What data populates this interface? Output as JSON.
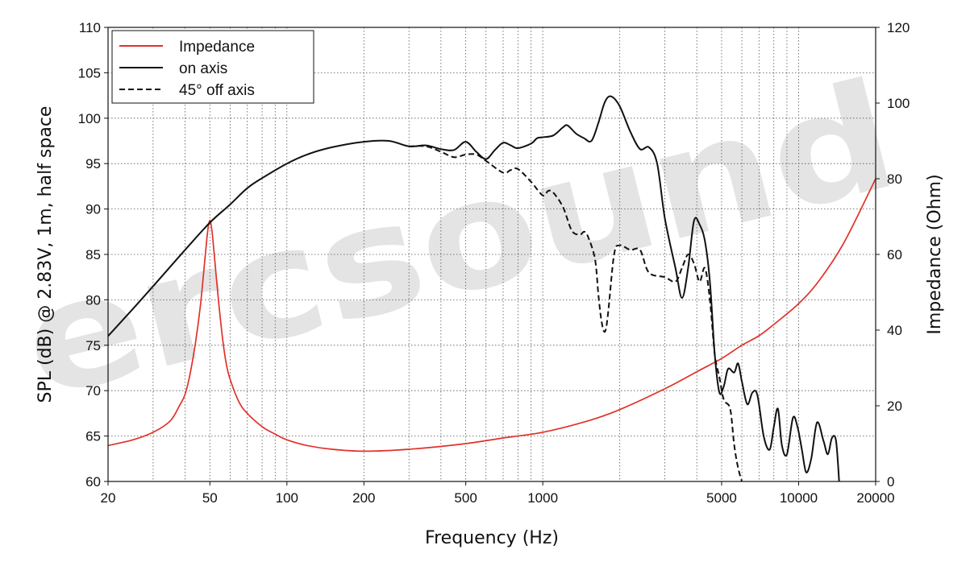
{
  "chart_data": {
    "type": "line",
    "xlabel": "Frequency (Hz)",
    "ylabel_left": "SPL (dB) @ 2.83V, 1m, half space",
    "ylabel_right": "Impedance (Ohm)",
    "x_scale": "log",
    "xlim": [
      20,
      20000
    ],
    "ylim_left": [
      60,
      110
    ],
    "ylim_right": [
      0,
      120
    ],
    "x_ticks": [
      20,
      50,
      100,
      200,
      500,
      1000,
      5000,
      10000,
      20000
    ],
    "x_tick_labels": [
      "20",
      "50",
      "100",
      "200",
      "500",
      "1000",
      "5000",
      "10000",
      "20000"
    ],
    "y_left_ticks": [
      60,
      65,
      70,
      75,
      80,
      85,
      90,
      95,
      100,
      105,
      110
    ],
    "y_right_ticks": [
      0,
      20,
      40,
      60,
      80,
      100,
      120
    ],
    "grid": true,
    "legend_position": "top-left",
    "watermark": "ercsound",
    "series": [
      {
        "name": "Impedance",
        "axis": "right",
        "color": "#e0322a",
        "style": "solid",
        "points": [
          [
            20,
            9.5
          ],
          [
            25,
            11
          ],
          [
            30,
            13
          ],
          [
            35,
            16
          ],
          [
            38,
            20
          ],
          [
            40,
            23
          ],
          [
            42,
            29
          ],
          [
            44,
            37
          ],
          [
            46,
            47
          ],
          [
            48,
            60
          ],
          [
            49,
            66
          ],
          [
            50,
            69
          ],
          [
            51,
            66
          ],
          [
            52,
            60
          ],
          [
            54,
            48
          ],
          [
            56,
            38
          ],
          [
            58,
            31
          ],
          [
            60,
            27
          ],
          [
            65,
            21
          ],
          [
            70,
            18
          ],
          [
            80,
            14.5
          ],
          [
            90,
            12.5
          ],
          [
            100,
            11
          ],
          [
            120,
            9.5
          ],
          [
            150,
            8.5
          ],
          [
            200,
            8
          ],
          [
            300,
            8.5
          ],
          [
            500,
            10
          ],
          [
            700,
            11.5
          ],
          [
            1000,
            13
          ],
          [
            1500,
            16
          ],
          [
            2000,
            19
          ],
          [
            3000,
            24.5
          ],
          [
            4000,
            29
          ],
          [
            5000,
            32.5
          ],
          [
            6000,
            36
          ],
          [
            7000,
            38.5
          ],
          [
            8000,
            41.5
          ],
          [
            10000,
            47
          ],
          [
            12000,
            53
          ],
          [
            15000,
            63
          ],
          [
            20000,
            80
          ]
        ]
      },
      {
        "name": "on axis",
        "axis": "left",
        "color": "#111111",
        "style": "solid",
        "points": [
          [
            20,
            76
          ],
          [
            25,
            79
          ],
          [
            30,
            81.5
          ],
          [
            40,
            85.5
          ],
          [
            50,
            88.5
          ],
          [
            60,
            90.5
          ],
          [
            70,
            92.3
          ],
          [
            80,
            93.4
          ],
          [
            100,
            95
          ],
          [
            120,
            96
          ],
          [
            150,
            96.8
          ],
          [
            200,
            97.4
          ],
          [
            250,
            97.5
          ],
          [
            300,
            96.9
          ],
          [
            350,
            97
          ],
          [
            400,
            96.6
          ],
          [
            450,
            96.5
          ],
          [
            500,
            97.4
          ],
          [
            550,
            96.3
          ],
          [
            600,
            95.5
          ],
          [
            650,
            96.5
          ],
          [
            700,
            97.3
          ],
          [
            750,
            97
          ],
          [
            800,
            96.7
          ],
          [
            900,
            97.2
          ],
          [
            950,
            97.8
          ],
          [
            1000,
            97.9
          ],
          [
            1100,
            98.1
          ],
          [
            1200,
            99
          ],
          [
            1250,
            99.2
          ],
          [
            1350,
            98.3
          ],
          [
            1450,
            97.8
          ],
          [
            1550,
            97.5
          ],
          [
            1650,
            99.5
          ],
          [
            1750,
            101.8
          ],
          [
            1850,
            102.4
          ],
          [
            2000,
            101.3
          ],
          [
            2200,
            98.5
          ],
          [
            2400,
            96.6
          ],
          [
            2600,
            96.8
          ],
          [
            2800,
            95
          ],
          [
            3000,
            89
          ],
          [
            3300,
            83.5
          ],
          [
            3500,
            80.2
          ],
          [
            3700,
            83.5
          ],
          [
            3900,
            88.7
          ],
          [
            4100,
            88.3
          ],
          [
            4300,
            86.5
          ],
          [
            4500,
            82
          ],
          [
            4700,
            74
          ],
          [
            4900,
            69.8
          ],
          [
            5100,
            70.5
          ],
          [
            5300,
            72.4
          ],
          [
            5600,
            72
          ],
          [
            5800,
            73
          ],
          [
            6000,
            71
          ],
          [
            6300,
            68.5
          ],
          [
            6600,
            69.8
          ],
          [
            6900,
            69.5
          ],
          [
            7300,
            65
          ],
          [
            7700,
            63.5
          ],
          [
            8000,
            66
          ],
          [
            8300,
            68
          ],
          [
            8600,
            64
          ],
          [
            9000,
            63
          ],
          [
            9500,
            67
          ],
          [
            9900,
            66
          ],
          [
            10300,
            63.5
          ],
          [
            10700,
            61
          ],
          [
            11200,
            62.5
          ],
          [
            11800,
            66.5
          ],
          [
            12500,
            64.5
          ],
          [
            13000,
            63
          ],
          [
            13500,
            64.8
          ],
          [
            14000,
            64.5
          ],
          [
            14400,
            60
          ]
        ]
      },
      {
        "name": "45° off axis",
        "axis": "left",
        "color": "#111111",
        "style": "dashed",
        "points": [
          [
            300,
            96.9
          ],
          [
            350,
            96.9
          ],
          [
            400,
            96.3
          ],
          [
            450,
            95.7
          ],
          [
            500,
            96
          ],
          [
            550,
            96
          ],
          [
            600,
            95.3
          ],
          [
            700,
            94
          ],
          [
            750,
            94.3
          ],
          [
            800,
            94.4
          ],
          [
            900,
            93
          ],
          [
            1000,
            91.5
          ],
          [
            1050,
            92
          ],
          [
            1100,
            91.8
          ],
          [
            1200,
            90.2
          ],
          [
            1300,
            87.6
          ],
          [
            1400,
            87.2
          ],
          [
            1450,
            87.5
          ],
          [
            1500,
            87
          ],
          [
            1600,
            84.5
          ],
          [
            1650,
            80.5
          ],
          [
            1700,
            77.5
          ],
          [
            1750,
            76.5
          ],
          [
            1800,
            78.5
          ],
          [
            1900,
            85
          ],
          [
            2000,
            86
          ],
          [
            2200,
            85.5
          ],
          [
            2400,
            85.5
          ],
          [
            2600,
            83
          ],
          [
            3000,
            82.5
          ],
          [
            3300,
            82
          ],
          [
            3500,
            83.5
          ],
          [
            3700,
            85
          ],
          [
            3900,
            84
          ],
          [
            4100,
            82
          ],
          [
            4300,
            83.5
          ],
          [
            4500,
            80
          ],
          [
            4700,
            74
          ],
          [
            4900,
            71.5
          ],
          [
            5100,
            69
          ],
          [
            5400,
            68
          ],
          [
            5600,
            64
          ],
          [
            5800,
            61.5
          ],
          [
            6000,
            60
          ]
        ]
      }
    ]
  }
}
